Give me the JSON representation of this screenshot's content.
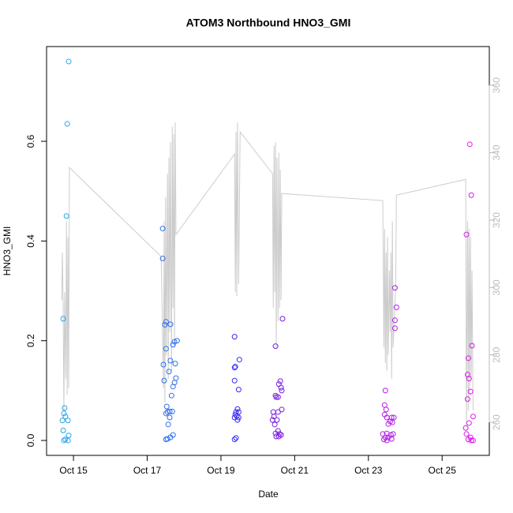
{
  "chart_data": {
    "type": "scatter",
    "title": "ATOM3 Northbound HNO3_GMI",
    "x_label": "Date",
    "y_label": "HNO3_GMI",
    "xlim": [
      14.27,
      26.28
    ],
    "ylim": [
      -0.03,
      0.79
    ],
    "y2lim": [
      250.2,
      371.5
    ],
    "xticks": [
      {
        "value": 15,
        "label": "Oct 15"
      },
      {
        "value": 17,
        "label": "Oct 17"
      },
      {
        "value": 19,
        "label": "Oct 19"
      },
      {
        "value": 21,
        "label": "Oct 21"
      },
      {
        "value": 23,
        "label": "Oct 23"
      },
      {
        "value": 25,
        "label": "Oct 25"
      }
    ],
    "yticks": [
      {
        "value": 0,
        "label": "0.0"
      },
      0.2,
      0.4,
      0.6
    ],
    "y2ticks": [
      260,
      280,
      300,
      320,
      340,
      360
    ],
    "y2_color": "#bbbbbb",
    "series": [
      {
        "color": "#2aa6e6",
        "x": [
          14.87,
          14.83,
          14.81,
          14.72,
          14.76,
          14.74,
          14.78,
          14.7,
          14.85,
          14.72,
          14.87,
          14.78,
          14.85,
          14.74
        ],
        "values": [
          0.76,
          0.635,
          0.45,
          0.244,
          0.065,
          0.054,
          0.048,
          0.04,
          0.04,
          0.02,
          0.01,
          0.002,
          0.0,
          0.0
        ]
      },
      {
        "color": "#2f6ff0",
        "x": [
          17.42,
          17.42,
          17.51,
          17.48,
          17.63,
          17.51,
          17.74,
          17.7,
          17.81,
          17.63,
          17.44,
          17.76,
          17.59,
          17.78,
          17.74,
          17.46,
          17.7,
          17.66,
          17.53,
          17.61,
          17.55,
          17.68,
          17.51,
          17.61,
          17.57,
          17.7,
          17.63,
          17.55,
          17.51
        ],
        "values": [
          0.425,
          0.365,
          0.238,
          0.232,
          0.233,
          0.184,
          0.198,
          0.192,
          0.2,
          0.16,
          0.152,
          0.154,
          0.138,
          0.125,
          0.116,
          0.12,
          0.108,
          0.09,
          0.068,
          0.058,
          0.057,
          0.058,
          0.054,
          0.046,
          0.032,
          0.011,
          0.006,
          0.003,
          0.002
        ]
      },
      {
        "color": "#3b2cf0",
        "x": [
          19.37,
          19.5,
          19.39,
          19.37,
          19.37,
          19.48,
          19.45,
          19.41,
          19.48,
          19.39,
          19.43,
          19.37,
          19.48,
          19.45,
          19.41,
          19.37
        ],
        "values": [
          0.208,
          0.162,
          0.148,
          0.146,
          0.12,
          0.102,
          0.063,
          0.057,
          0.057,
          0.052,
          0.049,
          0.046,
          0.046,
          0.041,
          0.005,
          0.002
        ]
      },
      {
        "color": "#7a1ee0",
        "x": [
          20.67,
          20.48,
          20.61,
          20.57,
          20.63,
          20.65,
          20.55,
          20.5,
          20.48,
          20.65,
          20.55,
          20.42,
          20.44,
          20.4,
          20.52,
          20.46,
          20.55,
          20.59,
          20.48,
          20.63,
          20.5,
          20.57
        ],
        "values": [
          0.244,
          0.189,
          0.119,
          0.113,
          0.106,
          0.1,
          0.087,
          0.087,
          0.09,
          0.062,
          0.057,
          0.057,
          0.048,
          0.041,
          0.041,
          0.032,
          0.019,
          0.013,
          0.014,
          0.011,
          0.008,
          0.008
        ]
      },
      {
        "color": "#b21ee6",
        "x": [
          23.72,
          23.76,
          23.72,
          23.72,
          23.46,
          23.44,
          23.48,
          23.44,
          23.5,
          23.63,
          23.69,
          23.59,
          23.54,
          23.65,
          23.5,
          23.39,
          23.61,
          23.46,
          23.54,
          23.63,
          23.5,
          23.42,
          23.67
        ],
        "values": [
          0.306,
          0.267,
          0.241,
          0.225,
          0.1,
          0.071,
          0.062,
          0.052,
          0.046,
          0.046,
          0.046,
          0.038,
          0.033,
          0.036,
          0.014,
          0.013,
          0.011,
          0.006,
          0.006,
          0.003,
          0.0,
          0.002,
          0.013
        ]
      },
      {
        "color": "#d81ee6",
        "x": [
          25.75,
          25.79,
          25.66,
          25.81,
          25.71,
          25.69,
          25.73,
          25.77,
          25.69,
          25.84,
          25.73,
          25.64,
          25.66,
          25.77,
          25.71,
          25.79,
          25.84
        ],
        "values": [
          0.594,
          0.492,
          0.413,
          0.19,
          0.165,
          0.132,
          0.124,
          0.098,
          0.083,
          0.048,
          0.035,
          0.025,
          0.013,
          0.006,
          0.002,
          0.0,
          0.0
        ]
      },
      {
        "type": "line",
        "axis": "y2",
        "color": "#cccccc",
        "x": [
          14.68,
          14.7,
          14.72,
          14.74,
          14.76,
          14.79,
          14.81,
          14.83,
          14.85,
          14.87,
          14.89,
          17.38,
          17.44,
          17.46,
          17.48,
          17.5,
          17.52,
          17.55,
          17.57,
          17.59,
          17.61,
          17.63,
          17.66,
          17.68,
          17.7,
          17.72,
          17.74,
          17.76,
          17.78,
          19.37,
          19.39,
          19.41,
          19.43,
          19.45,
          19.48,
          19.52,
          20.4,
          20.42,
          20.44,
          20.46,
          20.48,
          20.5,
          20.52,
          20.55,
          20.57,
          20.59,
          20.61,
          20.63,
          20.65,
          23.39,
          23.42,
          23.44,
          23.46,
          23.48,
          23.5,
          23.52,
          23.54,
          23.57,
          23.59,
          23.61,
          23.63,
          23.65,
          23.67,
          23.74,
          23.76,
          25.64,
          25.66,
          25.69,
          25.71,
          25.73,
          25.75,
          25.77,
          25.79,
          25.81,
          25.84
        ],
        "values": [
          296.3,
          310.4,
          294.0,
          263.5,
          298.6,
          272.9,
          319.7,
          268.2,
          315.0,
          270.1,
          335.6,
          309.2,
          270.1,
          319.7,
          265.9,
          326.7,
          279.9,
          333.8,
          272.9,
          338.5,
          286.9,
          343.1,
          275.2,
          347.8,
          294.0,
          345.5,
          282.2,
          349.0,
          315.7,
          339.6,
          298.6,
          346.2,
          297.5,
          349.0,
          301.0,
          346.2,
          333.8,
          294.0,
          342.0,
          298.6,
          343.1,
          282.2,
          338.5,
          290.0,
          340.0,
          294.0,
          335.0,
          296.3,
          327.9,
          325.8,
          282.2,
          317.4,
          277.6,
          310.4,
          275.2,
          315.0,
          279.9,
          305.0,
          286.9,
          310.4,
          272.9,
          319.7,
          282.2,
          300.0,
          327.4,
          332.1,
          258.8,
          319.7,
          263.5,
          317.4,
          268.2,
          315.0,
          272.9,
          305.0,
          263.5
        ]
      }
    ]
  }
}
